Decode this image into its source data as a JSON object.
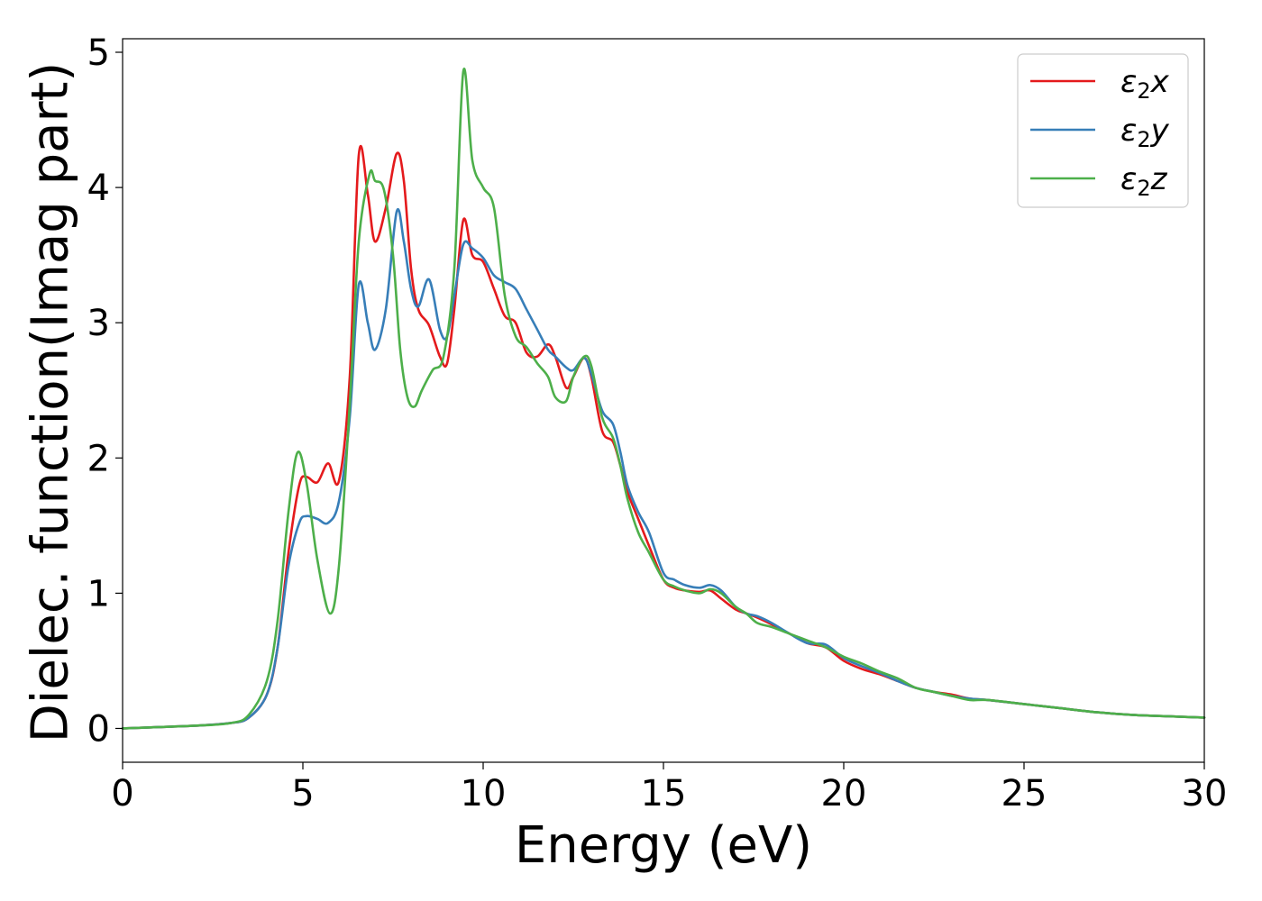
{
  "chart_data": {
    "type": "line",
    "xlabel": "Energy (eV)",
    "ylabel": "Dielec. function(Imag part)",
    "xlim": [
      0,
      30
    ],
    "ylim": [
      -0.25,
      5.1
    ],
    "xticks": [
      0,
      5,
      10,
      15,
      20,
      25,
      30
    ],
    "yticks": [
      0,
      1,
      2,
      3,
      4,
      5
    ],
    "grid": false,
    "legend_position": "top-right",
    "series": [
      {
        "name": "ε2x",
        "legend_base": "ε",
        "legend_sub": "2",
        "legend_tail": "x",
        "color": "#e41a1c",
        "x": [
          0,
          1,
          2,
          3,
          3.5,
          4,
          4.3,
          4.6,
          4.9,
          5.1,
          5.4,
          5.7,
          6.0,
          6.3,
          6.55,
          6.8,
          7.0,
          7.3,
          7.6,
          7.8,
          8.0,
          8.2,
          8.5,
          8.8,
          9.0,
          9.2,
          9.45,
          9.7,
          10.0,
          10.3,
          10.6,
          10.9,
          11.2,
          11.5,
          11.8,
          12.0,
          12.3,
          12.5,
          12.8,
          13.0,
          13.3,
          13.6,
          13.8,
          14.0,
          14.3,
          14.6,
          15.0,
          15.3,
          15.6,
          16.0,
          16.3,
          16.6,
          17.0,
          17.3,
          17.6,
          18.0,
          18.5,
          19.0,
          19.5,
          20.0,
          20.5,
          21.0,
          21.5,
          22.0,
          22.5,
          23.0,
          23.5,
          24.0,
          25.0,
          26.0,
          27.0,
          28.0,
          29.0,
          30.0
        ],
        "values": [
          0.0,
          0.01,
          0.02,
          0.04,
          0.08,
          0.25,
          0.6,
          1.3,
          1.8,
          1.86,
          1.82,
          1.96,
          1.83,
          2.6,
          4.24,
          3.95,
          3.6,
          3.85,
          4.25,
          4.05,
          3.4,
          3.1,
          2.98,
          2.75,
          2.7,
          3.1,
          3.76,
          3.5,
          3.45,
          3.25,
          3.05,
          3.0,
          2.78,
          2.75,
          2.84,
          2.75,
          2.52,
          2.6,
          2.74,
          2.6,
          2.2,
          2.12,
          1.95,
          1.75,
          1.55,
          1.35,
          1.1,
          1.04,
          1.02,
          1.01,
          1.02,
          0.96,
          0.88,
          0.85,
          0.82,
          0.77,
          0.7,
          0.63,
          0.6,
          0.5,
          0.44,
          0.4,
          0.35,
          0.3,
          0.27,
          0.25,
          0.22,
          0.21,
          0.18,
          0.15,
          0.12,
          0.1,
          0.09,
          0.08
        ]
      },
      {
        "name": "ε2y",
        "legend_base": "ε",
        "legend_sub": "2",
        "legend_tail": "y",
        "color": "#377eb8",
        "x": [
          0,
          1,
          2,
          3,
          3.5,
          4,
          4.3,
          4.6,
          4.9,
          5.1,
          5.4,
          5.7,
          6.0,
          6.3,
          6.55,
          6.8,
          7.0,
          7.3,
          7.6,
          7.8,
          8.0,
          8.2,
          8.5,
          8.8,
          9.0,
          9.2,
          9.45,
          9.7,
          10.0,
          10.3,
          10.6,
          10.9,
          11.2,
          11.5,
          11.8,
          12.0,
          12.3,
          12.5,
          12.8,
          13.0,
          13.3,
          13.6,
          13.8,
          14.0,
          14.3,
          14.6,
          15.0,
          15.3,
          15.6,
          16.0,
          16.3,
          16.6,
          17.0,
          17.3,
          17.6,
          18.0,
          18.5,
          19.0,
          19.5,
          20.0,
          20.5,
          21.0,
          21.5,
          22.0,
          22.5,
          23.0,
          23.5,
          24.0,
          25.0,
          26.0,
          27.0,
          28.0,
          29.0,
          30.0
        ],
        "values": [
          0.0,
          0.01,
          0.02,
          0.04,
          0.08,
          0.25,
          0.6,
          1.2,
          1.52,
          1.57,
          1.55,
          1.52,
          1.68,
          2.3,
          3.28,
          3.0,
          2.8,
          3.1,
          3.82,
          3.6,
          3.25,
          3.12,
          3.32,
          2.95,
          2.9,
          3.2,
          3.58,
          3.55,
          3.48,
          3.35,
          3.3,
          3.25,
          3.1,
          2.95,
          2.8,
          2.75,
          2.67,
          2.65,
          2.74,
          2.62,
          2.35,
          2.25,
          2.05,
          1.8,
          1.6,
          1.45,
          1.15,
          1.1,
          1.06,
          1.04,
          1.06,
          1.02,
          0.9,
          0.85,
          0.83,
          0.78,
          0.7,
          0.63,
          0.62,
          0.52,
          0.46,
          0.41,
          0.35,
          0.3,
          0.27,
          0.24,
          0.22,
          0.21,
          0.18,
          0.15,
          0.12,
          0.1,
          0.09,
          0.08
        ]
      },
      {
        "name": "ε2z",
        "legend_base": "ε",
        "legend_sub": "2",
        "legend_tail": "z",
        "color": "#4daf4a",
        "x": [
          0,
          1,
          2,
          3,
          3.5,
          4,
          4.3,
          4.6,
          4.85,
          5.1,
          5.4,
          5.75,
          6.0,
          6.3,
          6.55,
          6.85,
          7.0,
          7.25,
          7.5,
          7.7,
          7.9,
          8.1,
          8.3,
          8.6,
          8.9,
          9.2,
          9.45,
          9.7,
          10.0,
          10.3,
          10.6,
          10.9,
          11.2,
          11.5,
          11.8,
          12.0,
          12.3,
          12.5,
          12.8,
          13.0,
          13.3,
          13.6,
          13.8,
          14.0,
          14.3,
          14.6,
          15.0,
          15.3,
          15.6,
          16.0,
          16.3,
          16.6,
          17.0,
          17.3,
          17.6,
          18.0,
          18.5,
          19.0,
          19.5,
          20.0,
          20.5,
          21.0,
          21.5,
          22.0,
          22.5,
          23.0,
          23.5,
          24.0,
          25.0,
          26.0,
          27.0,
          28.0,
          29.0,
          30.0
        ],
        "values": [
          0.0,
          0.01,
          0.02,
          0.04,
          0.1,
          0.35,
          0.8,
          1.6,
          2.04,
          1.82,
          1.25,
          0.85,
          1.2,
          2.4,
          3.6,
          4.1,
          4.05,
          3.98,
          3.5,
          2.8,
          2.45,
          2.38,
          2.5,
          2.65,
          2.75,
          3.4,
          4.86,
          4.2,
          4.0,
          3.85,
          3.2,
          2.9,
          2.82,
          2.7,
          2.6,
          2.45,
          2.42,
          2.6,
          2.75,
          2.68,
          2.3,
          2.15,
          1.95,
          1.7,
          1.45,
          1.3,
          1.1,
          1.05,
          1.02,
          1.0,
          1.03,
          1.0,
          0.9,
          0.85,
          0.78,
          0.75,
          0.7,
          0.65,
          0.6,
          0.53,
          0.48,
          0.42,
          0.37,
          0.3,
          0.27,
          0.24,
          0.21,
          0.21,
          0.18,
          0.15,
          0.12,
          0.1,
          0.09,
          0.08
        ]
      }
    ]
  }
}
